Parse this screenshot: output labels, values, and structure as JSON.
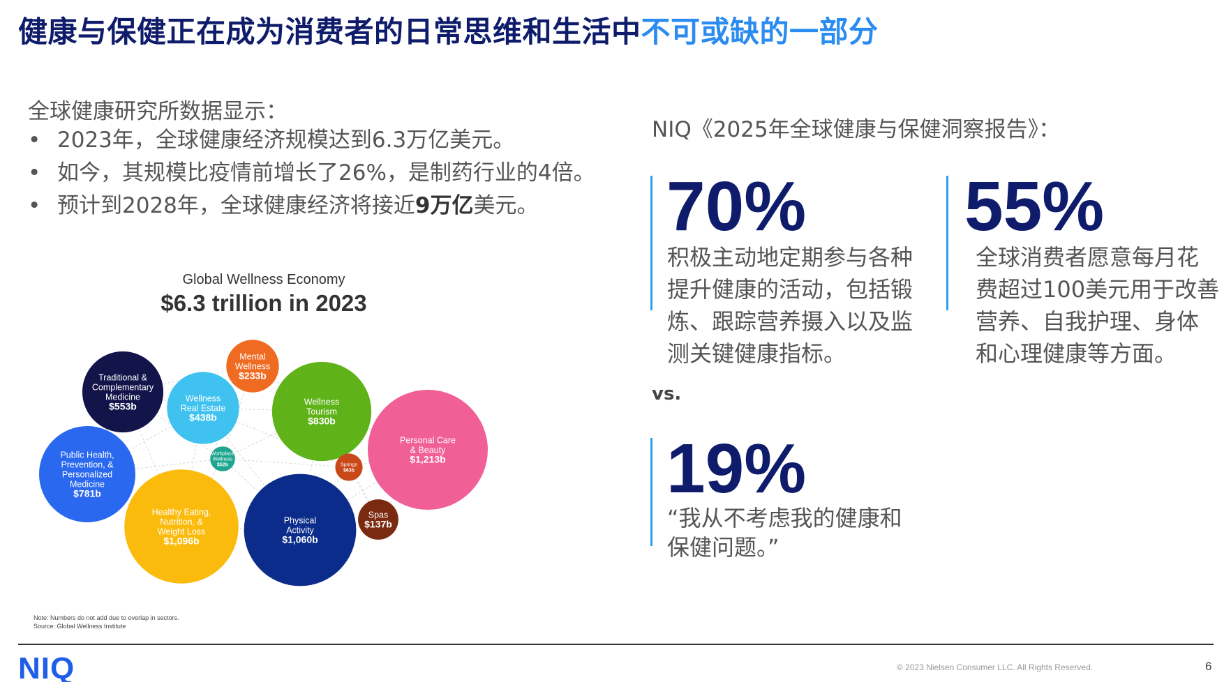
{
  "slide": {
    "title_main": "健康与保健正在成为消费者的日常思维和生活中",
    "title_highlight": "不可或缺的一部分",
    "intro": "全球健康研究所数据显示：",
    "bullets": [
      "2023年，全球健康经济规模达到6.3万亿美元。",
      "如今，其规模比疫情前增长了26%，是制药行业的4倍。"
    ],
    "bullet3": {
      "pre": "预计到2028年，全球健康经济将接近",
      "bold": "9万亿",
      "post": "美元。"
    },
    "report_title": "NIQ《2025年全球健康与保健洞察报告》：",
    "stats": [
      {
        "value": "70%",
        "desc": [
          "积极主动地定期参与各种",
          "提升健康的活动，包括锻",
          "炼、跟踪营养摄入以及监",
          "测关键健康指标。"
        ]
      },
      {
        "value": "55%",
        "desc": [
          "全球消费者愿意每月花",
          "费超过100美元用于改善",
          "营养、自我护理、身体",
          "和心理健康等方面。"
        ]
      },
      {
        "value": "19%",
        "desc": [
          "“我从不考虑我的健康和",
          "保健问题。”"
        ]
      }
    ],
    "vs": "vs.",
    "footer": {
      "logo": "NIQ",
      "copyright": "© 2023 Nielsen Consumer LLC. All Rights Reserved.",
      "page": "6"
    }
  },
  "chart_data": {
    "type": "bubble",
    "title": "Global Wellness Economy",
    "subtitle": "$6.3 trillion in 2023",
    "note": "Note: Numbers do not add due to overlap in sectors.",
    "source": "Source: Global Wellness Institute",
    "bubbles": [
      {
        "name": [
          "Traditional &",
          "Complementary",
          "Medicine"
        ],
        "value_label": "$553b",
        "value": 553,
        "color": "#13154a"
      },
      {
        "name": [
          "Mental",
          "Wellness"
        ],
        "value_label": "$233b",
        "value": 233,
        "color": "#f06b22"
      },
      {
        "name": [
          "Wellness",
          "Real Estate"
        ],
        "value_label": "$438b",
        "value": 438,
        "color": "#3fc2f0"
      },
      {
        "name": [
          "Wellness",
          "Tourism"
        ],
        "value_label": "$830b",
        "value": 830,
        "color": "#5fb319"
      },
      {
        "name": [
          "Personal Care",
          "& Beauty"
        ],
        "value_label": "$1,213b",
        "value": 1213,
        "color": "#f05f95"
      },
      {
        "name": [
          "Public Health,",
          "Prevention, &",
          "Personalized",
          "Medicine"
        ],
        "value_label": "$781b",
        "value": 781,
        "color": "#2a68f0"
      },
      {
        "name": [
          "Workplace",
          "Wellness"
        ],
        "value_label": "$52b",
        "value": 52,
        "color": "#1fa58f"
      },
      {
        "name": [
          "Springs"
        ],
        "value_label": "$63b",
        "value": 63,
        "color": "#c9481a"
      },
      {
        "name": [
          "Healthy Eating,",
          "Nutrition, &",
          "Weight Loss"
        ],
        "value_label": "$1,096b",
        "value": 1096,
        "color": "#fbbb0d"
      },
      {
        "name": [
          "Physical",
          "Activity"
        ],
        "value_label": "$1,060b",
        "value": 1060,
        "color": "#0b2c8a"
      },
      {
        "name": [
          "Spas"
        ],
        "value_label": "$137b",
        "value": 137,
        "color": "#7a2a10"
      }
    ]
  }
}
